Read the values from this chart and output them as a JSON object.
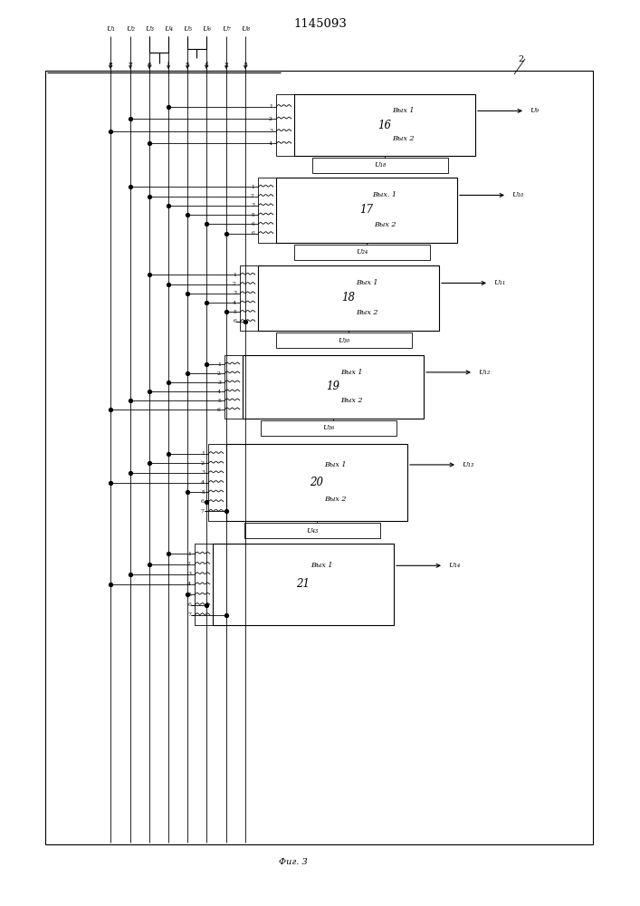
{
  "title": "1145093",
  "fig_label": "Фиг. 3",
  "bg_color": "#ffffff",
  "input_labels": [
    "U₁",
    "U₂",
    "U₃",
    "U₄",
    "U₅",
    "U₆",
    "U₇",
    "U₈"
  ],
  "bus_numbers": [
    "8",
    "7",
    "6",
    "1",
    "5",
    "4",
    "2",
    "3"
  ],
  "blocks": [
    {
      "label": "16",
      "npins": 4,
      "pin_labels": [
        "1",
        "2",
        "3",
        "4"
      ],
      "pin_bus_indices": [
        3,
        1,
        0,
        2
      ],
      "out1": "Вых 1",
      "out2": "Вых 2",
      "sig1": "U₉",
      "sig2": "U₁₈",
      "has_out2": true
    },
    {
      "label": "17",
      "npins": 6,
      "pin_labels": [
        "1",
        "2",
        "3",
        "5",
        "6",
        "6"
      ],
      "pin_bus_indices": [
        1,
        2,
        3,
        4,
        5,
        6
      ],
      "out1": "Вых. 1",
      "out2": "Вых 2",
      "sig1": "U₁₀",
      "sig2": "U₂₄",
      "has_out2": true
    },
    {
      "label": "18",
      "npins": 6,
      "pin_labels": [
        "1",
        "2",
        "3",
        "4",
        "5",
        "6"
      ],
      "pin_bus_indices": [
        2,
        3,
        4,
        5,
        6,
        7
      ],
      "out1": "Вых 1",
      "out2": "Вых 2",
      "sig1": "U₁₁",
      "sig2": "U₃₀",
      "has_out2": true
    },
    {
      "label": "19",
      "npins": 6,
      "pin_labels": [
        "1",
        "2",
        "3",
        "4",
        "5",
        "6"
      ],
      "pin_bus_indices": [
        5,
        4,
        3,
        2,
        1,
        0
      ],
      "out1": "Вых 1",
      "out2": "Вых 2",
      "sig1": "U₁₂",
      "sig2": "U₃₆",
      "has_out2": true
    },
    {
      "label": "20",
      "npins": 7,
      "pin_labels": [
        "1",
        "2",
        "3",
        "4",
        "5",
        "6",
        "7"
      ],
      "pin_bus_indices": [
        3,
        2,
        1,
        0,
        4,
        5,
        6
      ],
      "out1": "Вых 1",
      "out2": "Вых 2",
      "sig1": "U₁₃",
      "sig2": "U₄₃",
      "has_out2": true
    },
    {
      "label": "21",
      "npins": 7,
      "pin_labels": [
        "1",
        "2",
        "3",
        "4",
        "5",
        "6",
        "7"
      ],
      "pin_bus_indices": [
        3,
        2,
        1,
        0,
        4,
        5,
        6
      ],
      "out1": "Вых 1",
      "out2": null,
      "sig1": "U₁₄",
      "sig2": null,
      "has_out2": false
    }
  ]
}
